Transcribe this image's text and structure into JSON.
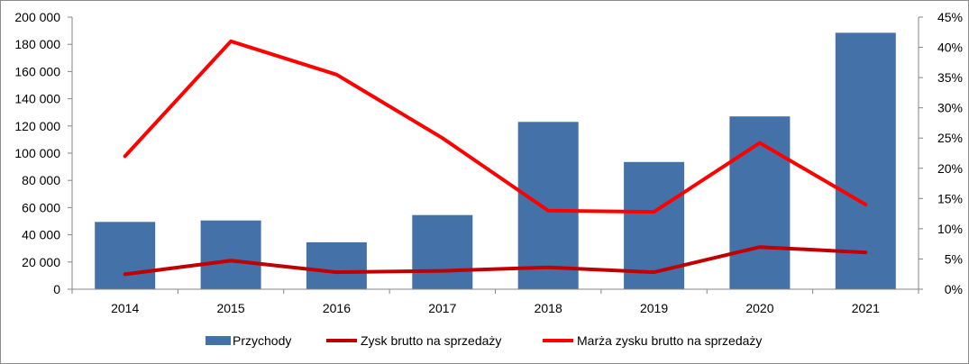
{
  "chart_data": {
    "type": "bar",
    "categories": [
      "2014",
      "2015",
      "2016",
      "2017",
      "2018",
      "2019",
      "2020",
      "2021"
    ],
    "series": [
      {
        "name": "Przychody",
        "type": "bar",
        "axis": "left",
        "color": "#4472a8",
        "values": [
          49500,
          50500,
          34500,
          54500,
          123000,
          93500,
          127000,
          188500
        ]
      },
      {
        "name": "Zysk brutto na sprzedaży",
        "type": "line",
        "axis": "left",
        "color": "#c00000",
        "values": [
          11000,
          21000,
          12500,
          13500,
          16000,
          12500,
          31000,
          27000
        ]
      },
      {
        "name": "Marża zysku brutto na sprzedaży",
        "type": "line",
        "axis": "right",
        "color": "#ff0000",
        "values": [
          0.22,
          0.41,
          0.355,
          0.25,
          0.13,
          0.128,
          0.242,
          0.14
        ]
      }
    ],
    "y_left": {
      "min": 0,
      "max": 200000,
      "step": 20000,
      "tick_labels": [
        "0",
        "20 000",
        "40 000",
        "60 000",
        "80 000",
        "100 000",
        "120 000",
        "140 000",
        "160 000",
        "180 000",
        "200 000"
      ]
    },
    "y_right": {
      "min": 0,
      "max": 0.45,
      "step": 0.05,
      "tick_labels": [
        "0%",
        "5%",
        "10%",
        "15%",
        "20%",
        "25%",
        "30%",
        "35%",
        "40%",
        "45%"
      ]
    },
    "title": "",
    "xlabel": "",
    "ylabel": "",
    "grid": false,
    "legend_position": "bottom"
  }
}
